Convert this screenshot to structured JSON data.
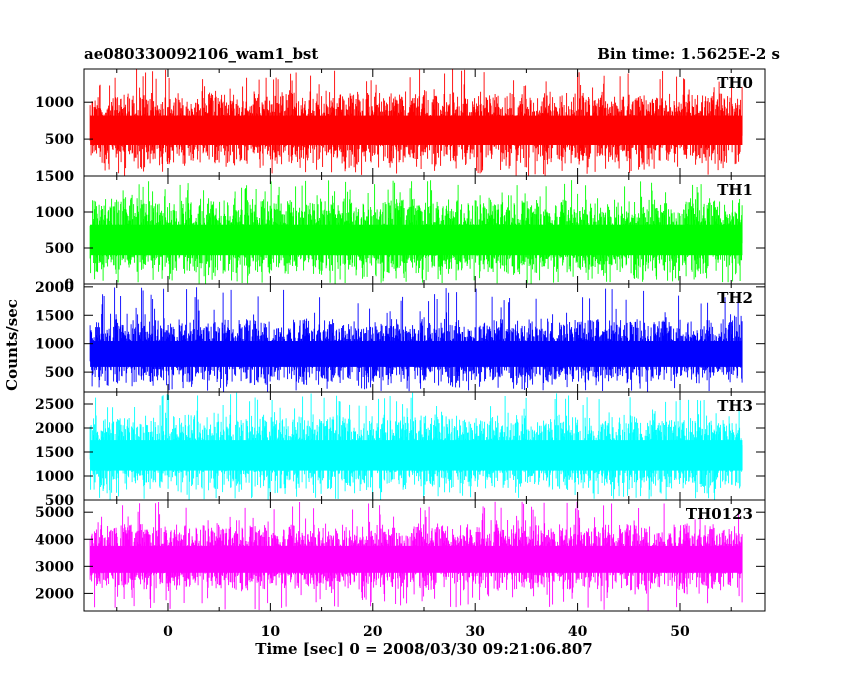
{
  "header": {
    "title": "ae080330092106_wam1_bst",
    "bin_time": "Bin time: 1.5625E-2 s"
  },
  "chart_data": {
    "type": "line",
    "xlabel": "Time [sec] 0 = 2008/03/30 09:21:06.807",
    "ylabel": "Counts/sec",
    "xlim": [
      -8.2,
      58.3
    ],
    "x_ticks": [
      0,
      10,
      20,
      30,
      40,
      50
    ],
    "x_data_range": [
      -7.6,
      56.1
    ],
    "grid": false,
    "panels": [
      {
        "name": "TH0",
        "color": "#ff0000",
        "ylim": [
          0,
          1450
        ],
        "ticks": [
          0,
          500,
          1000
        ],
        "tick_labels": [
          "0",
          "500",
          "1000"
        ],
        "mean": 640,
        "typical_low": 150,
        "typical_high": 1150,
        "min": 0,
        "max": 1450
      },
      {
        "name": "TH1",
        "color": "#00ff00",
        "ylim": [
          0,
          1500
        ],
        "ticks": [
          0,
          500,
          1000,
          1500
        ],
        "tick_labels": [
          "0",
          "500",
          "1000",
          "1500"
        ],
        "mean": 620,
        "typical_low": 130,
        "typical_high": 1200,
        "min": 0,
        "max": 1450
      },
      {
        "name": "TH2",
        "color": "#0000ff",
        "ylim": [
          150,
          2050
        ],
        "ticks": [
          500,
          1000,
          1500,
          2000
        ],
        "tick_labels": [
          "500",
          "1000",
          "1500",
          "2000"
        ],
        "mean": 830,
        "typical_low": 300,
        "typical_high": 1450,
        "min": 150,
        "max": 2000
      },
      {
        "name": "TH3",
        "color": "#00ffff",
        "ylim": [
          500,
          2750
        ],
        "ticks": [
          500,
          1000,
          1500,
          2000,
          2500
        ],
        "tick_labels": [
          "500",
          "1000",
          "1500",
          "2000",
          "2500"
        ],
        "mean": 1450,
        "typical_low": 700,
        "typical_high": 2300,
        "min": 500,
        "max": 2750
      },
      {
        "name": "TH0123",
        "color": "#ff00ff",
        "ylim": [
          1350,
          5450
        ],
        "ticks": [
          2000,
          3000,
          4000,
          5000
        ],
        "tick_labels": [
          "2000",
          "3000",
          "4000",
          "5000"
        ],
        "mean": 3300,
        "typical_low": 2100,
        "typical_high": 4600,
        "min": 1350,
        "max": 5400
      }
    ]
  }
}
